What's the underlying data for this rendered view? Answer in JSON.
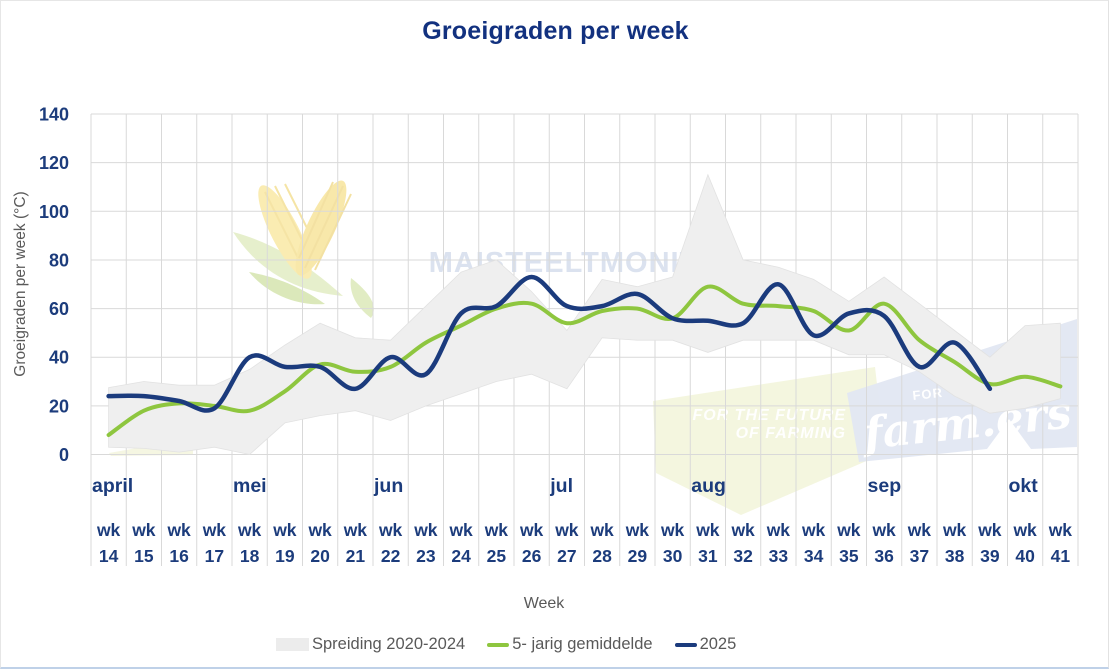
{
  "title": "Groeigraden per week",
  "y_axis": {
    "label": "Groeigraden per week (°C)",
    "ticks": [
      0,
      20,
      40,
      60,
      80,
      100,
      120,
      140
    ]
  },
  "x_axis": {
    "label": "Week",
    "week_prefix": "wk"
  },
  "legend": [
    {
      "label": "Spreiding 2020-2024",
      "type": "band",
      "color": "#ececec"
    },
    {
      "label": "5- jarig gemiddelde",
      "type": "line",
      "color": "#8ec63f"
    },
    {
      "label": "2025",
      "type": "line",
      "color": "#1b3b7d"
    }
  ],
  "watermarks": {
    "center_text": "MAISTEELTMONITOR",
    "slogan_line1": "FOR THE FUTURE",
    "slogan_line2": "OF FARMING",
    "brand_prefix": "FOR",
    "brand": "farm.ers"
  },
  "colors": {
    "navy_line": "#1b3b7d",
    "green_line": "#8ec63f",
    "band_fill": "#efefef",
    "band_edge": "#e2e2e2",
    "grid": "#d9d9d9",
    "navy_text": "#1c3c7c",
    "title_text": "#12317f",
    "gray_text": "#595959",
    "watermark_text": "#dbe2ef",
    "logo_yellow_bg": "#f3f5dd",
    "logo_blue_bg": "#e1e7f2",
    "bottom_border": "#bfd1e8"
  },
  "chart_data": {
    "type": "line",
    "title": "Groeigraden per week",
    "xlabel": "Week",
    "ylabel": "Groeigraden per week (°C)",
    "ylim": [
      0,
      140
    ],
    "y_tick_step": 20,
    "grid": true,
    "legend_position": "bottom",
    "weeks": [
      14,
      15,
      16,
      17,
      18,
      19,
      20,
      21,
      22,
      23,
      24,
      25,
      26,
      27,
      28,
      29,
      30,
      31,
      32,
      33,
      34,
      35,
      36,
      37,
      38,
      39,
      40,
      41
    ],
    "months": [
      {
        "label": "april",
        "start_week": 14
      },
      {
        "label": "mei",
        "start_week": 18
      },
      {
        "label": "jun",
        "start_week": 22
      },
      {
        "label": "jul",
        "start_week": 27
      },
      {
        "label": "aug",
        "start_week": 31
      },
      {
        "label": "sep",
        "start_week": 36
      },
      {
        "label": "okt",
        "start_week": 40
      }
    ],
    "series": [
      {
        "name": "Spreiding 2020-2024",
        "type": "band",
        "color": "#efefef",
        "max": [
          27.5,
          30,
          28.5,
          28.5,
          35,
          45,
          54,
          48,
          47,
          61,
          75,
          80,
          67,
          51,
          72,
          69,
          73,
          115,
          80,
          77,
          72,
          63,
          73,
          62,
          51,
          40,
          53,
          54
        ],
        "min": [
          3,
          2.5,
          1,
          3,
          0,
          13,
          16,
          18,
          14,
          20,
          25,
          30,
          33,
          27,
          48,
          47,
          47,
          42,
          47,
          47,
          47,
          41,
          41,
          34,
          24,
          17,
          19,
          23
        ]
      },
      {
        "name": "5- jarig gemiddelde",
        "type": "line",
        "color": "#8ec63f",
        "values": [
          8,
          18,
          21,
          20,
          18,
          26,
          37,
          34,
          36,
          46,
          53,
          60,
          62,
          54,
          59,
          60,
          56,
          69,
          62,
          61,
          59,
          51,
          62,
          47,
          38,
          29,
          32,
          28
        ]
      },
      {
        "name": "2025",
        "type": "line",
        "color": "#1b3b7d",
        "values": [
          24,
          24,
          22,
          19,
          40,
          36,
          36,
          27,
          40,
          33,
          58,
          61,
          73,
          61,
          61,
          66,
          56,
          55,
          54,
          70,
          49,
          58,
          57,
          36,
          46,
          27,
          null,
          null
        ]
      }
    ]
  }
}
